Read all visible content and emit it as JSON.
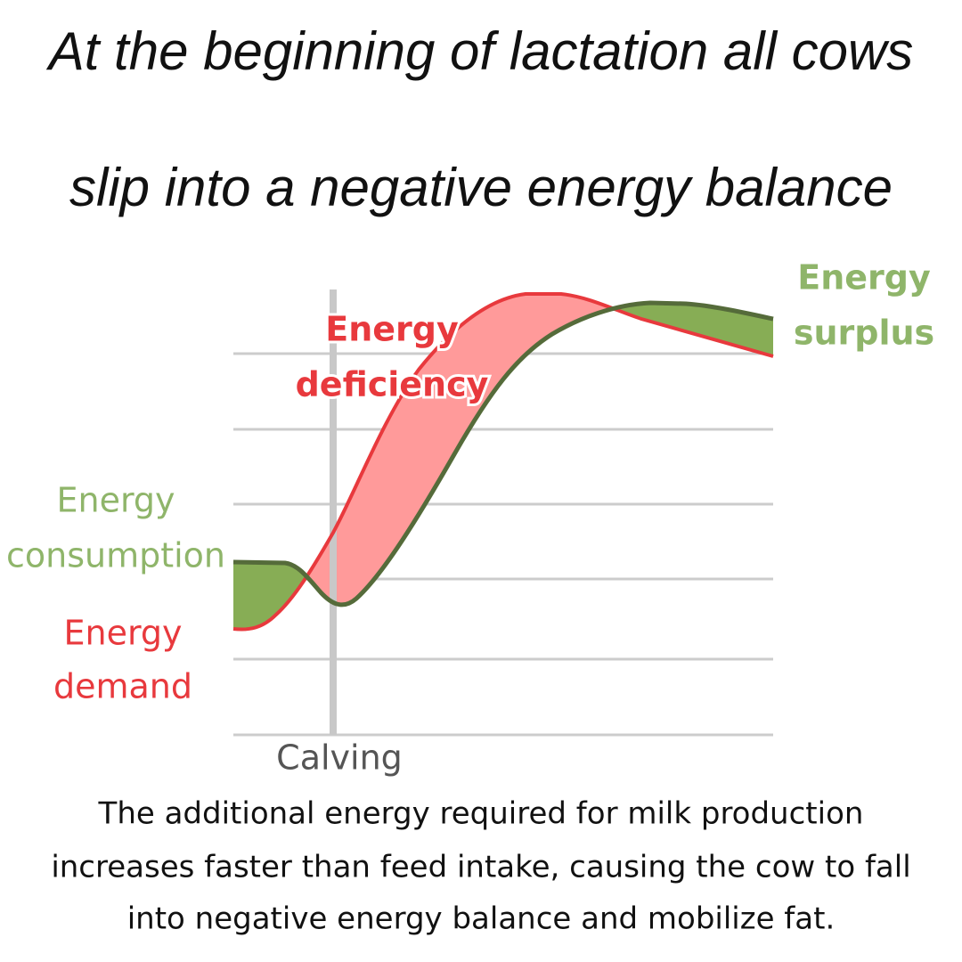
{
  "title": [
    "At the beginning of lactation all cows",
    "slip into a negative energy balance"
  ],
  "labels": {
    "deficiency": [
      "Energy",
      "deficiency"
    ],
    "surplus": [
      "Energy",
      "surplus"
    ],
    "consumption": [
      "Energy",
      "consumption"
    ],
    "demand": [
      "Energy",
      "demand"
    ],
    "calving": "Calving"
  },
  "caption": [
    "The additional energy required for milk production",
    "increases faster than feed intake, causing the cow to fall",
    "into negative energy balance and mobilize fat."
  ]
}
